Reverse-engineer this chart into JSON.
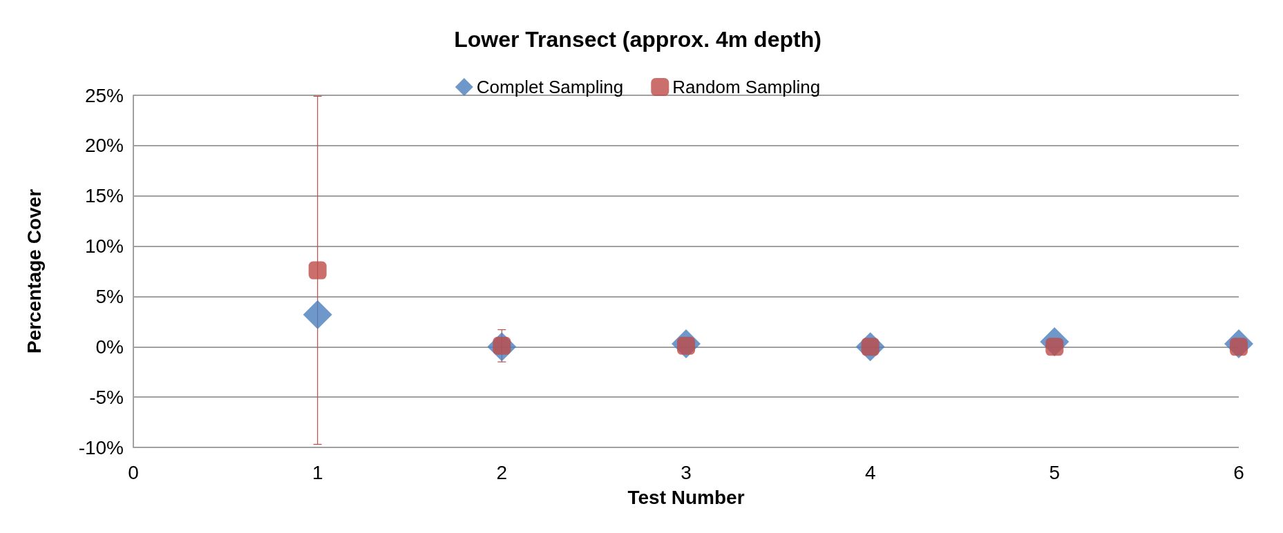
{
  "chart_data": {
    "type": "scatter",
    "title": "Lower Transect (approx. 4m depth)",
    "xlabel": "Test Number",
    "ylabel": "Percentage Cover",
    "x": [
      1,
      2,
      3,
      4,
      5,
      6
    ],
    "series": [
      {
        "name": "Complet Sampling",
        "color": "#4a7ebb",
        "marker": "diamond",
        "values": [
          3.2,
          0,
          0.3,
          0,
          0.5,
          0.3
        ]
      },
      {
        "name": "Random Sampling",
        "color": "#be4b48",
        "marker": "square",
        "values": [
          7.6,
          0.1,
          0.1,
          0,
          0,
          0
        ],
        "errors": [
          17.3,
          1.6,
          null,
          null,
          null,
          null
        ]
      }
    ],
    "xlim": [
      0,
      6
    ],
    "xticks": [
      0,
      1,
      2,
      3,
      4,
      5,
      6
    ],
    "ylim": [
      -10,
      25
    ],
    "yticks": [
      {
        "value": -10,
        "label": "-10%"
      },
      {
        "value": -5,
        "label": "-5%"
      },
      {
        "value": 0,
        "label": "0%"
      },
      {
        "value": 5,
        "label": "5%"
      },
      {
        "value": 10,
        "label": "10%"
      },
      {
        "value": 15,
        "label": "15%"
      },
      {
        "value": 20,
        "label": "20%"
      },
      {
        "value": 25,
        "label": "25%"
      }
    ],
    "grid": "y",
    "legend": "top"
  }
}
